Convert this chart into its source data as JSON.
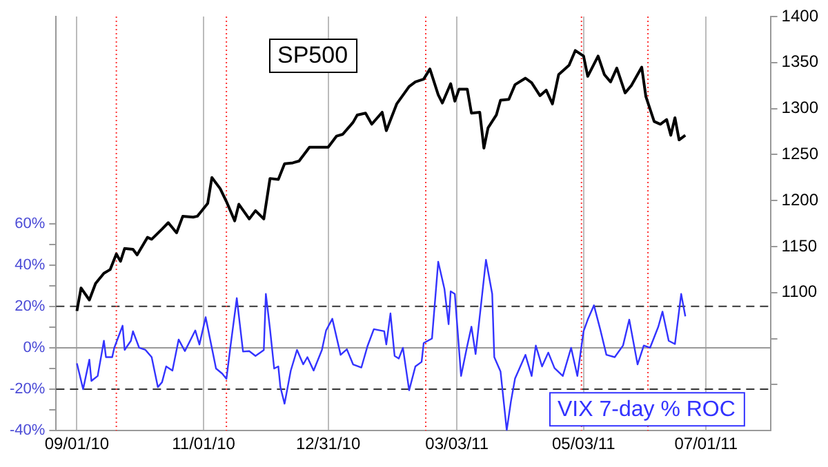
{
  "chart_data": {
    "type": "line",
    "xlim": [
      "2010-08-22",
      "2011-08-01"
    ],
    "xticks": [
      {
        "value": "2010-09-01",
        "label": "09/01/10"
      },
      {
        "value": "2010-11-01",
        "label": "11/01/10"
      },
      {
        "value": "2010-12-31",
        "label": "12/31/10"
      },
      {
        "value": "2011-03-03",
        "label": "03/03/11"
      },
      {
        "value": "2011-05-03",
        "label": "05/03/11"
      },
      {
        "value": "2011-07-01",
        "label": "07/01/11"
      }
    ],
    "ylim": [
      -40,
      160
    ],
    "yticks": [
      {
        "value": -40,
        "label": "-40%"
      },
      {
        "value": -30,
        "label": null
      },
      {
        "value": -20,
        "label": "-20%"
      },
      {
        "value": -10,
        "label": null
      },
      {
        "value": 0,
        "label": "0%"
      },
      {
        "value": 10,
        "label": null
      },
      {
        "value": 20,
        "label": "20%"
      },
      {
        "value": 30,
        "label": null
      },
      {
        "value": 40,
        "label": "40%"
      },
      {
        "value": 50,
        "label": null
      },
      {
        "value": 60,
        "label": "60%"
      }
    ],
    "y2lim": [
      950,
      1400
    ],
    "y2ticks": [
      {
        "value": 1000,
        "label": null
      },
      {
        "value": 1050,
        "label": null
      },
      1100,
      1150,
      1200,
      1250,
      1300,
      1350,
      1400
    ],
    "grid": "x",
    "legend": false,
    "marker": "none",
    "line_style": "solid",
    "ref_lines": [
      {
        "axis": "y",
        "value": 0,
        "color": "#999999",
        "line_style": "solid"
      },
      {
        "axis": "y",
        "value": 20,
        "color": "#333333",
        "line_style": "dashed"
      },
      {
        "axis": "y",
        "value": -20,
        "color": "#333333",
        "line_style": "dashed"
      },
      {
        "axis": "x",
        "value": "2010-09-20",
        "color": "#ff3333",
        "line_style": "dotted"
      },
      {
        "axis": "x",
        "value": "2010-11-12",
        "color": "#ff3333",
        "line_style": "dotted"
      },
      {
        "axis": "x",
        "value": "2011-02-16",
        "color": "#ff3333",
        "line_style": "dotted"
      },
      {
        "axis": "x",
        "value": "2011-05-02",
        "color": "#ff3333",
        "line_style": "dotted"
      },
      {
        "axis": "x",
        "value": "2011-06-03",
        "color": "#ff3333",
        "line_style": "dotted"
      }
    ],
    "series": [
      {
        "name": "SP500",
        "color": "#000000",
        "axis": "y2",
        "x": [
          "2010-09-01",
          "2010-09-03",
          "2010-09-07",
          "2010-09-10",
          "2010-09-14",
          "2010-09-17",
          "2010-09-20",
          "2010-09-22",
          "2010-09-24",
          "2010-09-28",
          "2010-09-30",
          "2010-10-05",
          "2010-10-07",
          "2010-10-12",
          "2010-10-15",
          "2010-10-19",
          "2010-10-22",
          "2010-10-27",
          "2010-10-29",
          "2010-11-03",
          "2010-11-05",
          "2010-11-09",
          "2010-11-12",
          "2010-11-16",
          "2010-11-18",
          "2010-11-23",
          "2010-11-26",
          "2010-11-30",
          "2010-12-03",
          "2010-12-07",
          "2010-12-10",
          "2010-12-14",
          "2010-12-17",
          "2010-12-22",
          "2010-12-28",
          "2010-12-31",
          "2011-01-04",
          "2011-01-07",
          "2011-01-12",
          "2011-01-14",
          "2011-01-18",
          "2011-01-21",
          "2011-01-26",
          "2011-01-28",
          "2011-02-02",
          "2011-02-08",
          "2011-02-11",
          "2011-02-15",
          "2011-02-18",
          "2011-02-22",
          "2011-02-24",
          "2011-02-28",
          "2011-03-02",
          "2011-03-04",
          "2011-03-08",
          "2011-03-10",
          "2011-03-14",
          "2011-03-16",
          "2011-03-18",
          "2011-03-22",
          "2011-03-24",
          "2011-03-28",
          "2011-03-31",
          "2011-04-05",
          "2011-04-08",
          "2011-04-12",
          "2011-04-15",
          "2011-04-18",
          "2011-04-21",
          "2011-04-26",
          "2011-04-29",
          "2011-05-03",
          "2011-05-05",
          "2011-05-10",
          "2011-05-13",
          "2011-05-16",
          "2011-05-19",
          "2011-05-23",
          "2011-05-26",
          "2011-05-31",
          "2011-06-02",
          "2011-06-06",
          "2011-06-09",
          "2011-06-12",
          "2011-06-14",
          "2011-06-16",
          "2011-06-18",
          "2011-06-21"
        ],
        "values": [
          1080,
          1105,
          1092,
          1110,
          1121,
          1125,
          1142,
          1134,
          1148,
          1147,
          1141,
          1160,
          1158,
          1169,
          1176,
          1165,
          1183,
          1182,
          1183,
          1197,
          1225,
          1213,
          1199,
          1178,
          1196,
          1180,
          1189,
          1180,
          1224,
          1223,
          1240,
          1241,
          1243,
          1258,
          1258,
          1258,
          1270,
          1272,
          1285,
          1293,
          1295,
          1283,
          1296,
          1276,
          1305,
          1324,
          1329,
          1332,
          1343,
          1315,
          1306,
          1327,
          1308,
          1321,
          1321,
          1295,
          1296,
          1257,
          1279,
          1293,
          1309,
          1310,
          1326,
          1333,
          1328,
          1314,
          1320,
          1305,
          1337,
          1347,
          1363,
          1357,
          1335,
          1357,
          1337,
          1329,
          1344,
          1317,
          1325,
          1345,
          1313,
          1286,
          1283,
          1288,
          1271,
          1290,
          1266,
          1271
        ]
      },
      {
        "name": "VIX 7-day % ROC",
        "color": "#3333ff",
        "x": [
          "2010-09-01",
          "2010-09-04",
          "2010-09-07",
          "2010-09-08",
          "2010-09-11",
          "2010-09-14",
          "2010-09-15",
          "2010-09-18",
          "2010-09-19",
          "2010-09-23",
          "2010-09-24",
          "2010-09-27",
          "2010-09-28",
          "2010-10-01",
          "2010-10-04",
          "2010-10-07",
          "2010-10-10",
          "2010-10-12",
          "2010-10-14",
          "2010-10-17",
          "2010-10-20",
          "2010-10-23",
          "2010-10-28",
          "2010-10-30",
          "2010-11-02",
          "2010-11-07",
          "2010-11-10",
          "2010-11-12",
          "2010-11-14",
          "2010-11-17",
          "2010-11-20",
          "2010-11-23",
          "2010-11-26",
          "2010-11-30",
          "2010-12-01",
          "2010-12-03",
          "2010-12-05",
          "2010-12-07",
          "2010-12-08",
          "2010-12-10",
          "2010-12-13",
          "2010-12-16",
          "2010-12-19",
          "2010-12-21",
          "2010-12-24",
          "2010-12-28",
          "2010-12-30",
          "2011-01-02",
          "2011-01-06",
          "2011-01-09",
          "2011-01-12",
          "2011-01-16",
          "2011-01-19",
          "2011-01-22",
          "2011-01-27",
          "2011-01-28",
          "2011-01-30",
          "2011-02-01",
          "2011-02-03",
          "2011-02-05",
          "2011-02-08",
          "2011-02-11",
          "2011-02-14",
          "2011-02-15",
          "2011-02-19",
          "2011-02-22",
          "2011-02-25",
          "2011-02-27",
          "2011-02-28",
          "2011-03-02",
          "2011-03-05",
          "2011-03-08",
          "2011-03-10",
          "2011-03-12",
          "2011-03-17",
          "2011-03-20",
          "2011-03-21",
          "2011-03-24",
          "2011-03-27",
          "2011-03-29",
          "2011-03-31",
          "2011-04-05",
          "2011-04-08",
          "2011-04-10",
          "2011-04-13",
          "2011-04-16",
          "2011-04-19",
          "2011-04-23",
          "2011-04-27",
          "2011-04-30",
          "2011-05-03",
          "2011-05-05",
          "2011-05-08",
          "2011-05-11",
          "2011-05-14",
          "2011-05-18",
          "2011-05-22",
          "2011-05-25",
          "2011-05-29",
          "2011-06-01",
          "2011-06-04",
          "2011-06-08",
          "2011-06-10",
          "2011-06-13",
          "2011-06-16",
          "2011-06-19",
          "2011-06-21"
        ],
        "values": [
          -7.5,
          -20,
          -5.7,
          -16,
          -13.6,
          3.4,
          -4.5,
          -4.5,
          0,
          10.7,
          -1,
          3.4,
          8,
          0,
          -1,
          -4.5,
          -19,
          -16.6,
          -9,
          -11,
          4,
          -1.6,
          8.4,
          1.6,
          14.8,
          -10,
          -12.5,
          -15,
          1,
          24,
          -1.8,
          -1.6,
          -3.9,
          -1.1,
          26,
          9,
          -10,
          -9,
          -19,
          -27,
          -11,
          -1,
          -8,
          -4.5,
          -11,
          -1,
          8.4,
          14,
          -3.4,
          -0.7,
          -8,
          -9.5,
          1,
          9,
          8,
          1.6,
          16.6,
          -3.9,
          -5.2,
          0,
          -20.5,
          -9,
          -6.8,
          2.3,
          4.5,
          41.6,
          28.4,
          11.4,
          27.3,
          26,
          -13.6,
          1.1,
          10.2,
          -3,
          42.5,
          26,
          -4.5,
          -11.4,
          -39.8,
          -26,
          -14.8,
          -3.4,
          -13.6,
          1.1,
          -9,
          -2.3,
          -9.8,
          -13.6,
          0,
          -13.6,
          8,
          13.6,
          20.5,
          9,
          -3.4,
          -4.5,
          1.1,
          13.6,
          -8,
          1.1,
          0,
          10.2,
          17.5,
          3.4,
          1.8,
          26,
          15.2
        ]
      }
    ]
  }
}
